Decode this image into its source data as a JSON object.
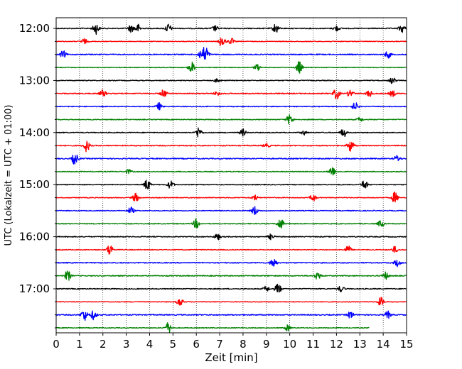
{
  "chart_data": {
    "type": "line",
    "subtype": "seismogram-helicorder",
    "xlabel": "Zeit  [min]",
    "ylabel": "UTC (Lokalzeit = UTC + 01:00)",
    "xlim": [
      0,
      15
    ],
    "x_ticks": [
      "0",
      "1",
      "2",
      "3",
      "4",
      "5",
      "6",
      "7",
      "8",
      "9",
      "10",
      "11",
      "12",
      "13",
      "14",
      "15"
    ],
    "y_tick_labels": [
      "12:00",
      "13:00",
      "14:00",
      "15:00",
      "16:00",
      "17:00"
    ],
    "grid": "vertical-dotted",
    "color_cycle": [
      "#000000",
      "#ff0000",
      "#0000ff",
      "#008000"
    ],
    "rows": [
      {
        "start": "12:00",
        "color": "#000000",
        "end_min": 15,
        "base_amp": 0.22,
        "events": [
          [
            1.7,
            2.5
          ],
          [
            3.5,
            1.8
          ],
          [
            3.2,
            1.6
          ],
          [
            4.8,
            2.0
          ],
          [
            6.8,
            1.2
          ],
          [
            9.4,
            2.2
          ],
          [
            12.0,
            1.2
          ],
          [
            14.8,
            1.8
          ]
        ]
      },
      {
        "start": "12:15",
        "color": "#ff0000",
        "end_min": 15,
        "base_amp": 0.16,
        "events": [
          [
            1.2,
            1.2
          ],
          [
            7.1,
            2.6
          ],
          [
            7.5,
            1.4
          ]
        ]
      },
      {
        "start": "12:30",
        "color": "#0000ff",
        "end_min": 15,
        "base_amp": 0.22,
        "events": [
          [
            0.3,
            1.6
          ],
          [
            6.4,
            3.6
          ],
          [
            6.2,
            2.0
          ],
          [
            14.2,
            1.6
          ]
        ]
      },
      {
        "start": "12:45",
        "color": "#008000",
        "end_min": 15,
        "base_amp": 0.16,
        "events": [
          [
            5.8,
            2.6
          ],
          [
            8.6,
            1.4
          ],
          [
            10.4,
            2.8
          ]
        ]
      },
      {
        "start": "13:00",
        "color": "#000000",
        "end_min": 15,
        "base_amp": 0.18,
        "events": [
          [
            6.9,
            1.0
          ],
          [
            14.4,
            1.4
          ]
        ]
      },
      {
        "start": "13:15",
        "color": "#ff0000",
        "end_min": 15,
        "base_amp": 0.22,
        "events": [
          [
            2.0,
            1.6
          ],
          [
            4.6,
            1.8
          ],
          [
            6.9,
            1.0
          ],
          [
            12.0,
            2.6
          ],
          [
            12.6,
            1.8
          ],
          [
            13.4,
            1.6
          ],
          [
            14.4,
            1.4
          ]
        ]
      },
      {
        "start": "13:30",
        "color": "#0000ff",
        "end_min": 15,
        "base_amp": 0.18,
        "events": [
          [
            4.4,
            1.6
          ],
          [
            12.8,
            1.8
          ]
        ]
      },
      {
        "start": "13:45",
        "color": "#008000",
        "end_min": 15,
        "base_amp": 0.18,
        "events": [
          [
            10.0,
            2.4
          ],
          [
            13.0,
            1.0
          ]
        ]
      },
      {
        "start": "14:00",
        "color": "#000000",
        "end_min": 15,
        "base_amp": 0.18,
        "events": [
          [
            6.1,
            2.4
          ],
          [
            8.0,
            1.6
          ],
          [
            12.3,
            2.0
          ],
          [
            10.6,
            1.0
          ]
        ]
      },
      {
        "start": "14:15",
        "color": "#ff0000",
        "end_min": 15,
        "base_amp": 0.22,
        "events": [
          [
            1.3,
            2.6
          ],
          [
            12.6,
            2.8
          ],
          [
            9.0,
            1.0
          ]
        ]
      },
      {
        "start": "14:30",
        "color": "#0000ff",
        "end_min": 15,
        "base_amp": 0.24,
        "events": [
          [
            0.8,
            2.6
          ],
          [
            14.6,
            1.4
          ]
        ]
      },
      {
        "start": "14:45",
        "color": "#008000",
        "end_min": 15,
        "base_amp": 0.18,
        "events": [
          [
            11.8,
            2.4
          ],
          [
            3.1,
            1.0
          ]
        ]
      },
      {
        "start": "15:00",
        "color": "#000000",
        "end_min": 15,
        "base_amp": 0.18,
        "events": [
          [
            3.9,
            2.6
          ],
          [
            4.9,
            1.8
          ],
          [
            13.2,
            2.2
          ]
        ]
      },
      {
        "start": "15:15",
        "color": "#ff0000",
        "end_min": 15,
        "base_amp": 0.18,
        "events": [
          [
            3.4,
            2.0
          ],
          [
            8.5,
            1.2
          ],
          [
            11.0,
            1.6
          ],
          [
            14.5,
            2.6
          ]
        ]
      },
      {
        "start": "15:30",
        "color": "#0000ff",
        "end_min": 15,
        "base_amp": 0.18,
        "events": [
          [
            3.2,
            1.6
          ],
          [
            8.5,
            2.0
          ]
        ]
      },
      {
        "start": "15:45",
        "color": "#008000",
        "end_min": 15,
        "base_amp": 0.18,
        "events": [
          [
            6.0,
            2.2
          ],
          [
            9.6,
            2.6
          ],
          [
            13.9,
            1.6
          ]
        ]
      },
      {
        "start": "16:00",
        "color": "#000000",
        "end_min": 15,
        "base_amp": 0.2,
        "events": [
          [
            6.9,
            1.4
          ],
          [
            9.2,
            1.2
          ]
        ]
      },
      {
        "start": "16:15",
        "color": "#ff0000",
        "end_min": 15,
        "base_amp": 0.18,
        "events": [
          [
            2.3,
            2.6
          ],
          [
            12.5,
            1.8
          ],
          [
            14.5,
            1.4
          ]
        ]
      },
      {
        "start": "16:30",
        "color": "#0000ff",
        "end_min": 15,
        "base_amp": 0.22,
        "events": [
          [
            9.3,
            2.4
          ],
          [
            14.6,
            1.6
          ]
        ]
      },
      {
        "start": "16:45",
        "color": "#008000",
        "end_min": 15,
        "base_amp": 0.22,
        "events": [
          [
            0.5,
            2.4
          ],
          [
            11.2,
            1.8
          ],
          [
            14.1,
            1.6
          ]
        ]
      },
      {
        "start": "17:00",
        "color": "#000000",
        "end_min": 15,
        "base_amp": 0.2,
        "events": [
          [
            9.5,
            2.4
          ],
          [
            9.0,
            1.2
          ],
          [
            12.2,
            1.4
          ]
        ]
      },
      {
        "start": "17:15",
        "color": "#ff0000",
        "end_min": 15,
        "base_amp": 0.16,
        "events": [
          [
            5.3,
            2.0
          ],
          [
            13.9,
            2.0
          ]
        ]
      },
      {
        "start": "17:30",
        "color": "#0000ff",
        "end_min": 15,
        "base_amp": 0.22,
        "events": [
          [
            1.2,
            2.6
          ],
          [
            1.6,
            2.0
          ],
          [
            12.6,
            1.6
          ],
          [
            14.2,
            1.6
          ]
        ]
      },
      {
        "start": "17:45",
        "color": "#008000",
        "end_min": 13.4,
        "base_amp": 0.16,
        "events": [
          [
            4.8,
            2.4
          ],
          [
            9.9,
            1.4
          ]
        ]
      }
    ]
  }
}
